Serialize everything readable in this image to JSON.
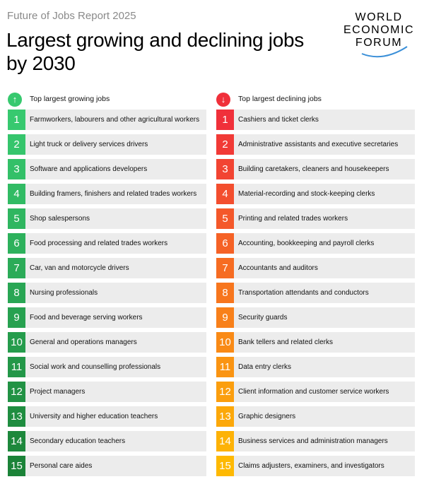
{
  "report": "Future of Jobs Report 2025",
  "title": "Largest growing and declining jobs by 2030",
  "logo": {
    "line1": "WORLD",
    "line2": "ECONOMIC",
    "line3": "FORUM"
  },
  "growing": {
    "heading": "Top largest growing jobs",
    "arrow": "↑",
    "colors": [
      "#37c96f",
      "#35c56c",
      "#33c068",
      "#31bb64",
      "#2fb660",
      "#2db15c",
      "#2bab58",
      "#29a654",
      "#27a150",
      "#259c4c",
      "#239748",
      "#219244",
      "#1f8d40",
      "#1d883c",
      "#1b8338"
    ],
    "items": [
      {
        "rank": "1",
        "label": "Farmworkers, labourers and other agricultural workers"
      },
      {
        "rank": "2",
        "label": "Light truck or delivery services drivers"
      },
      {
        "rank": "3",
        "label": "Software and applications developers"
      },
      {
        "rank": "4",
        "label": "Building framers, finishers and related trades workers"
      },
      {
        "rank": "5",
        "label": "Shop salespersons"
      },
      {
        "rank": "6",
        "label": "Food processing and related trades workers"
      },
      {
        "rank": "7",
        "label": "Car, van and motorcycle drivers"
      },
      {
        "rank": "8",
        "label": "Nursing professionals"
      },
      {
        "rank": "9",
        "label": "Food and beverage serving workers"
      },
      {
        "rank": "10",
        "label": "General and operations managers"
      },
      {
        "rank": "11",
        "label": "Social work and counselling professionals"
      },
      {
        "rank": "12",
        "label": "Project managers"
      },
      {
        "rank": "13",
        "label": "University and higher education teachers"
      },
      {
        "rank": "14",
        "label": "Secondary education teachers"
      },
      {
        "rank": "15",
        "label": "Personal care aides"
      }
    ]
  },
  "declining": {
    "heading": "Top largest declining jobs",
    "arrow": "↓",
    "colors": [
      "#f0303a",
      "#f13a36",
      "#f24432",
      "#f34e2e",
      "#f4582a",
      "#f56226",
      "#f66c22",
      "#f7761e",
      "#f8801a",
      "#f98a16",
      "#fa9412",
      "#fb9e0e",
      "#fca80a",
      "#fdb206",
      "#feb902"
    ],
    "items": [
      {
        "rank": "1",
        "label": "Cashiers and ticket clerks"
      },
      {
        "rank": "2",
        "label": "Administrative assistants and executive secretaries"
      },
      {
        "rank": "3",
        "label": "Building caretakers, cleaners and housekeepers"
      },
      {
        "rank": "4",
        "label": "Material-recording and stock-keeping clerks"
      },
      {
        "rank": "5",
        "label": "Printing and related trades workers"
      },
      {
        "rank": "6",
        "label": "Accounting, bookkeeping and payroll clerks"
      },
      {
        "rank": "7",
        "label": "Accountants and auditors"
      },
      {
        "rank": "8",
        "label": "Transportation attendants and conductors"
      },
      {
        "rank": "9",
        "label": "Security guards"
      },
      {
        "rank": "10",
        "label": "Bank tellers and related clerks"
      },
      {
        "rank": "11",
        "label": "Data entry clerks"
      },
      {
        "rank": "12",
        "label": "Client information and customer service workers"
      },
      {
        "rank": "13",
        "label": "Graphic designers"
      },
      {
        "rank": "14",
        "label": "Business services and administration managers"
      },
      {
        "rank": "15",
        "label": "Claims adjusters, examiners, and investigators"
      }
    ]
  }
}
